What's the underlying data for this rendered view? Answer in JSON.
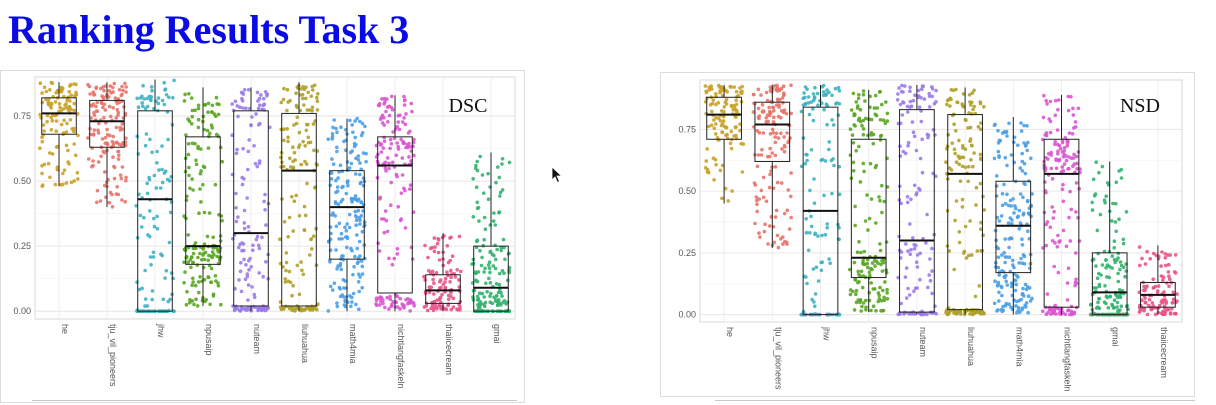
{
  "slide": {
    "title": "Ranking Results Task 3"
  },
  "icons": {
    "cursor": "mouse-pointer-icon"
  },
  "colors": {
    "title": "#0a0ae6",
    "panel_bg": "#ffffff",
    "grid": "#ebebeb",
    "box": "#1a1a1a"
  },
  "chart_data": [
    {
      "type": "box-jitter",
      "title": "DSC",
      "xlabel": "",
      "ylabel": "",
      "ylim": [
        -0.03,
        0.9
      ],
      "yticks": [
        0.0,
        0.25,
        0.5,
        0.75
      ],
      "ytick_labels": [
        "0.00",
        "0.25",
        "0.50",
        "0.75"
      ],
      "grid": true,
      "legend": "none",
      "categories": [
        "he",
        "tju_vil_pioneers",
        "jhw",
        "npusaip",
        "nuteam",
        "liuhuahua",
        "math4mia",
        "nichtlangfaskeln",
        "thaiicecream",
        "gmai"
      ],
      "colors": [
        "#c9a227",
        "#e8746a",
        "#3fb3c0",
        "#5aa621",
        "#9b7bea",
        "#b0a12a",
        "#4a9ee6",
        "#d957d2",
        "#e85488",
        "#34b36f"
      ],
      "series": [
        {
          "category": "he",
          "q1": 0.68,
          "median": 0.76,
          "q3": 0.82,
          "whisker_low": 0.48,
          "whisker_high": 0.88,
          "n": 120
        },
        {
          "category": "tju_vil_pioneers",
          "q1": 0.63,
          "median": 0.73,
          "q3": 0.81,
          "whisker_low": 0.4,
          "whisker_high": 0.88,
          "n": 150
        },
        {
          "category": "jhw",
          "q1": 0.0,
          "median": 0.43,
          "q3": 0.77,
          "whisker_low": 0.0,
          "whisker_high": 0.89,
          "n": 140
        },
        {
          "category": "npusaip",
          "q1": 0.18,
          "median": 0.25,
          "q3": 0.67,
          "whisker_low": 0.02,
          "whisker_high": 0.86,
          "n": 170
        },
        {
          "category": "nuteam",
          "q1": 0.02,
          "median": 0.3,
          "q3": 0.77,
          "whisker_low": 0.0,
          "whisker_high": 0.86,
          "n": 150
        },
        {
          "category": "liuhuahua",
          "q1": 0.02,
          "median": 0.54,
          "q3": 0.76,
          "whisker_low": 0.0,
          "whisker_high": 0.88,
          "n": 160
        },
        {
          "category": "math4mia",
          "q1": 0.2,
          "median": 0.4,
          "q3": 0.54,
          "whisker_low": 0.0,
          "whisker_high": 0.74,
          "n": 190
        },
        {
          "category": "nichtlangfaskeln",
          "q1": 0.07,
          "median": 0.56,
          "q3": 0.67,
          "whisker_low": 0.0,
          "whisker_high": 0.83,
          "n": 170
        },
        {
          "category": "thaiicecream",
          "q1": 0.03,
          "median": 0.08,
          "q3": 0.14,
          "whisker_low": 0.0,
          "whisker_high": 0.3,
          "n": 110
        },
        {
          "category": "gmai",
          "q1": 0.0,
          "median": 0.09,
          "q3": 0.25,
          "whisker_low": 0.0,
          "whisker_high": 0.61,
          "n": 170
        }
      ]
    },
    {
      "type": "box-jitter",
      "title": "NSD",
      "xlabel": "",
      "ylabel": "",
      "ylim": [
        -0.03,
        0.95
      ],
      "yticks": [
        0.0,
        0.25,
        0.5,
        0.75
      ],
      "ytick_labels": [
        "0.00",
        "0.25",
        "0.50",
        "0.75"
      ],
      "grid": true,
      "legend": "none",
      "categories": [
        "he",
        "tju_vil_pioneers",
        "jhw",
        "npusaip",
        "nuteam",
        "liuhuahua",
        "math4mia",
        "nichtlangfaskeln",
        "gmai",
        "thaiicecream"
      ],
      "colors": [
        "#c9a227",
        "#e8746a",
        "#3fb3c0",
        "#5aa621",
        "#9b7bea",
        "#b0a12a",
        "#4a9ee6",
        "#d957d2",
        "#34b36f",
        "#e85488"
      ],
      "series": [
        {
          "category": "he",
          "q1": 0.71,
          "median": 0.81,
          "q3": 0.88,
          "whisker_low": 0.45,
          "whisker_high": 0.93,
          "n": 120
        },
        {
          "category": "tju_vil_pioneers",
          "q1": 0.62,
          "median": 0.77,
          "q3": 0.86,
          "whisker_low": 0.27,
          "whisker_high": 0.93,
          "n": 150
        },
        {
          "category": "jhw",
          "q1": 0.0,
          "median": 0.42,
          "q3": 0.84,
          "whisker_low": 0.0,
          "whisker_high": 0.93,
          "n": 140
        },
        {
          "category": "npusaip",
          "q1": 0.15,
          "median": 0.23,
          "q3": 0.71,
          "whisker_low": 0.01,
          "whisker_high": 0.91,
          "n": 170
        },
        {
          "category": "nuteam",
          "q1": 0.01,
          "median": 0.3,
          "q3": 0.83,
          "whisker_low": 0.0,
          "whisker_high": 0.93,
          "n": 150
        },
        {
          "category": "liuhuahua",
          "q1": 0.02,
          "median": 0.57,
          "q3": 0.81,
          "whisker_low": 0.0,
          "whisker_high": 0.92,
          "n": 160
        },
        {
          "category": "math4mia",
          "q1": 0.17,
          "median": 0.36,
          "q3": 0.54,
          "whisker_low": 0.0,
          "whisker_high": 0.8,
          "n": 190
        },
        {
          "category": "nichtlangfaskeln",
          "q1": 0.03,
          "median": 0.57,
          "q3": 0.71,
          "whisker_low": 0.0,
          "whisker_high": 0.89,
          "n": 170
        },
        {
          "category": "gmai",
          "q1": 0.0,
          "median": 0.09,
          "q3": 0.25,
          "whisker_low": 0.0,
          "whisker_high": 0.62,
          "n": 170
        },
        {
          "category": "thaiicecream",
          "q1": 0.03,
          "median": 0.08,
          "q3": 0.13,
          "whisker_low": 0.0,
          "whisker_high": 0.28,
          "n": 110
        }
      ]
    }
  ]
}
